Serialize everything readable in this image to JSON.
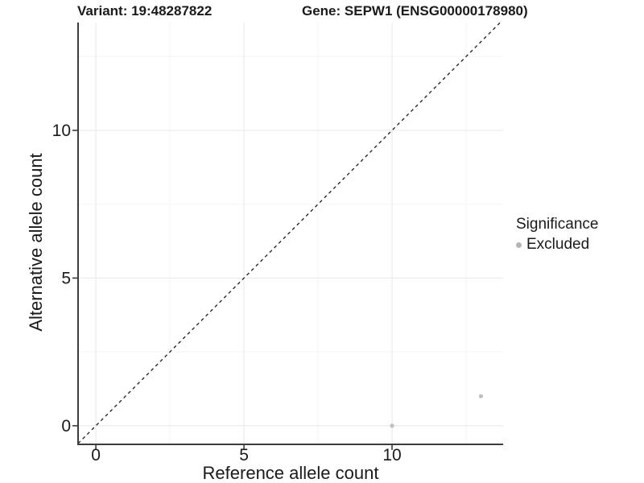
{
  "titles": {
    "variant": "Variant: 19:48287822",
    "gene": "Gene: SEPW1 (ENSG00000178980)"
  },
  "axes": {
    "x": {
      "title": "Reference allele count"
    },
    "y": {
      "title": "Alternative allele count"
    }
  },
  "legend": {
    "title": "Significance",
    "items": [
      {
        "label": "Excluded",
        "color": "#b5b5b5"
      }
    ],
    "position": "right"
  },
  "colors": {
    "background": "#ffffff",
    "grid_major": "#e8e8e8",
    "grid_minor": "#f4f4f4",
    "axis_line": "#3c3c3c",
    "tick_text": "#1a1a1a",
    "point": "#bfbfbf",
    "reference_line": "#1a1a1a"
  },
  "chart_data": {
    "type": "scatter",
    "title": "Variant: 19:48287822 / Gene: SEPW1 (ENSG00000178980)",
    "xlabel": "Reference allele count",
    "ylabel": "Alternative allele count",
    "xlim": [
      -0.6,
      13.75
    ],
    "ylim": [
      -0.63,
      13.65
    ],
    "x_major_ticks": [
      0,
      5,
      10
    ],
    "x_tick_labels": [
      "0",
      "5",
      "10"
    ],
    "y_major_ticks": [
      0,
      5,
      10
    ],
    "y_tick_labels": [
      "0",
      "5",
      "10"
    ],
    "x_minor_ticks": [
      2.5,
      7.5,
      12.5
    ],
    "y_minor_ticks": [
      2.5,
      7.5,
      12.5
    ],
    "grid": true,
    "series": [
      {
        "name": "Excluded",
        "points": [
          {
            "x": 10,
            "y": 0
          },
          {
            "x": 13,
            "y": 1
          }
        ]
      }
    ],
    "reference_line": {
      "type": "identity",
      "slope": 1,
      "intercept": 0,
      "style": "dashed"
    }
  }
}
